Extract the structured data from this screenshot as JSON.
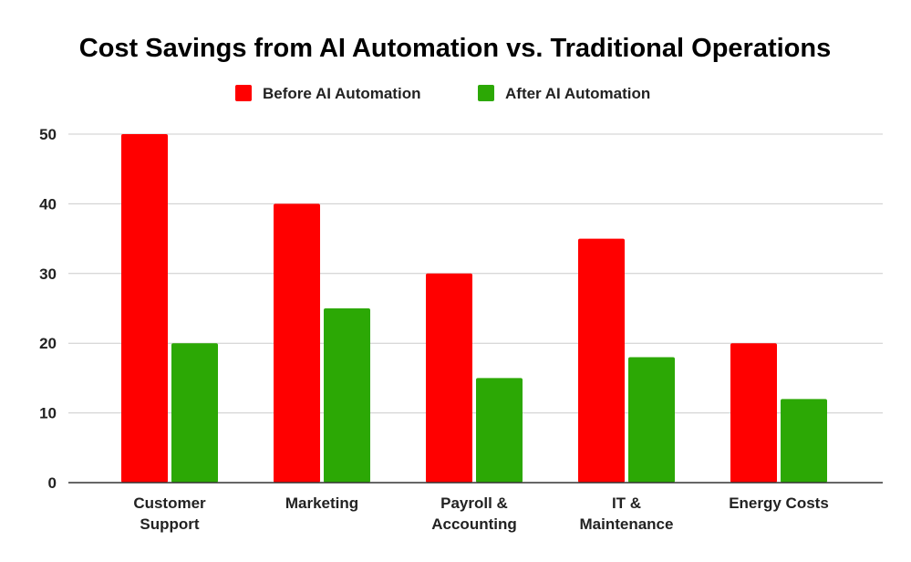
{
  "chart_data": {
    "type": "bar",
    "title": "Cost Savings from AI Automation vs. Traditional Operations",
    "categories": [
      [
        "Customer",
        "Support"
      ],
      [
        "Marketing"
      ],
      [
        "Payroll &",
        "Accounting"
      ],
      [
        "IT &",
        "Maintenance"
      ],
      [
        "Energy Costs"
      ]
    ],
    "series": [
      {
        "name": "Before AI Automation",
        "color": "#ff0000",
        "values": [
          50,
          40,
          30,
          35,
          20
        ]
      },
      {
        "name": "After AI Automation",
        "color": "#2ca805",
        "values": [
          20,
          25,
          15,
          18,
          12
        ]
      }
    ],
    "ylim": [
      0,
      50
    ],
    "yticks": [
      0,
      10,
      20,
      30,
      40,
      50
    ],
    "xlabel": "",
    "ylabel": "",
    "grid": true,
    "legend": "top-center"
  }
}
